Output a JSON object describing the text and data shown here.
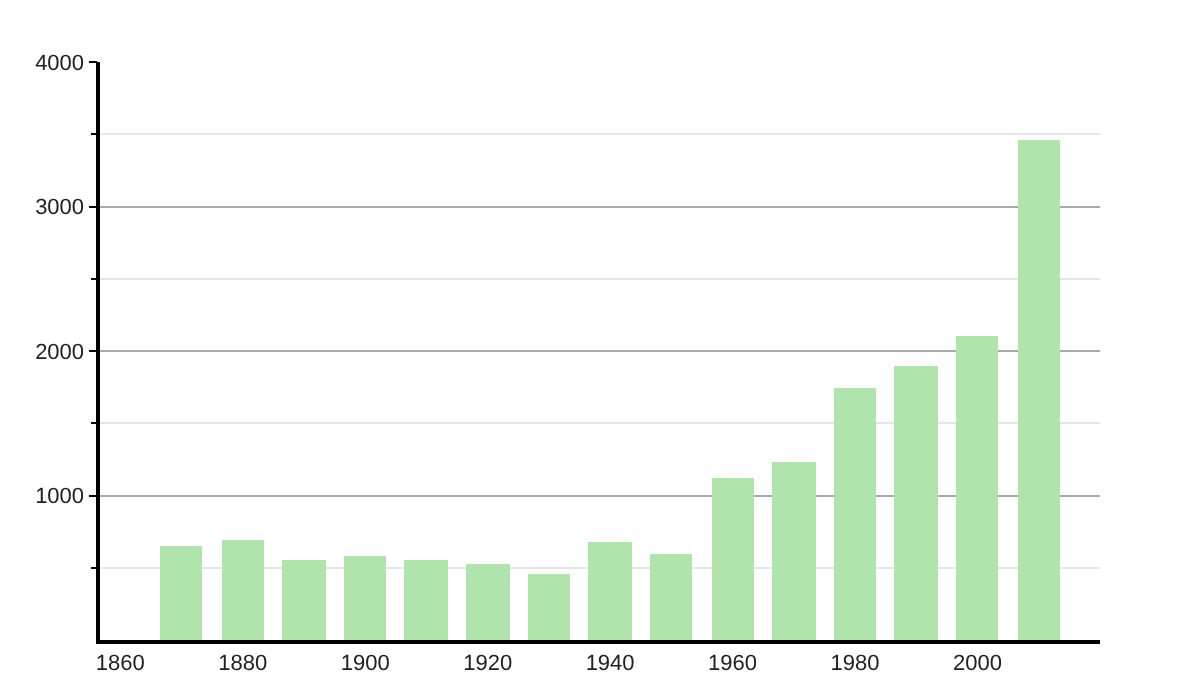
{
  "chart_data": {
    "type": "bar",
    "x": [
      1870,
      1880,
      1890,
      1900,
      1910,
      1920,
      1930,
      1940,
      1950,
      1960,
      1970,
      1980,
      1990,
      2000,
      2010
    ],
    "values": [
      649,
      690,
      552,
      580,
      552,
      520,
      456,
      676,
      594,
      1118,
      1229,
      1749,
      1891,
      2103,
      3461
    ],
    "color": "#b1e3ad",
    "xlim": [
      1856.7,
      2020
    ],
    "xticks": [
      1860,
      1880,
      1900,
      1920,
      1940,
      1960,
      1980,
      2000
    ],
    "ylim": [
      0,
      4000
    ],
    "yticks": [
      {
        "value": 500,
        "label": null
      },
      1000,
      {
        "value": 1500,
        "label": null
      },
      2000,
      {
        "value": 2500,
        "label": null
      },
      3000,
      {
        "value": 3500,
        "label": null
      },
      4000
    ],
    "grid": "y"
  }
}
